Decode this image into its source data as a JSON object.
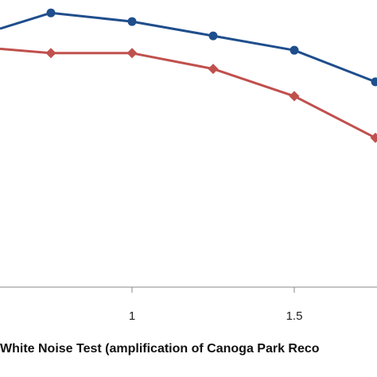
{
  "chart_data": {
    "type": "line",
    "x": [
      0.5,
      0.75,
      1.0,
      1.25,
      1.5,
      1.75
    ],
    "x_tick_labels": [
      "1",
      "1.5"
    ],
    "x_tick_values": [
      1.0,
      1.5
    ],
    "xlim": [
      0.5,
      1.75
    ],
    "ylim": [
      0,
      1.0
    ],
    "xlabel": "White Noise Test (amplification  of Canoga  Park Reco",
    "grid": false,
    "series": [
      {
        "color": "#1F4E8C",
        "marker": "circle",
        "values": [
          null,
          0.955,
          0.925,
          0.875,
          0.825,
          0.715
        ]
      },
      {
        "color": "#C0504D",
        "marker": "diamond",
        "values": [
          null,
          0.815,
          0.815,
          0.76,
          0.665,
          0.52
        ]
      }
    ],
    "series_left_edge_values": [
      0.9,
      0.83
    ]
  }
}
